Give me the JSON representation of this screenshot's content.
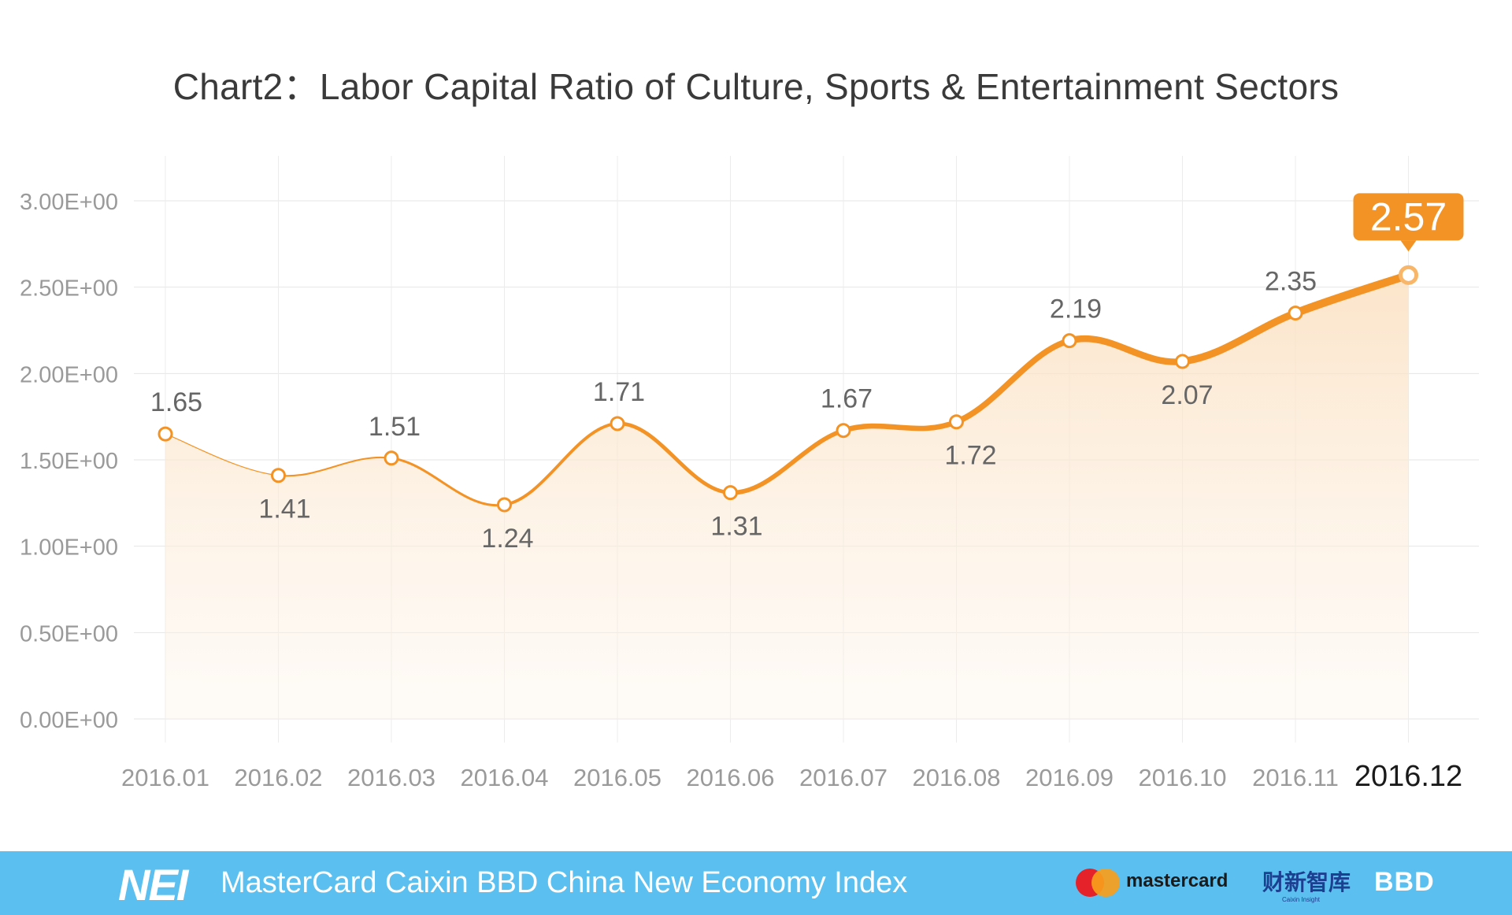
{
  "chart_data": {
    "type": "area",
    "title": "Chart2：Labor Capital Ratio of Culture, Sports & Entertainment Sectors",
    "categories": [
      "2016.01",
      "2016.02",
      "2016.03",
      "2016.04",
      "2016.05",
      "2016.06",
      "2016.07",
      "2016.08",
      "2016.09",
      "2016.10",
      "2016.11",
      "2016.12"
    ],
    "series": [
      {
        "values": [
          1.65,
          1.41,
          1.51,
          1.24,
          1.71,
          1.31,
          1.67,
          1.72,
          2.19,
          2.07,
          2.35,
          2.57
        ]
      }
    ],
    "data_labels": [
      "1.65",
      "1.41",
      "1.51",
      "1.24",
      "1.71",
      "1.31",
      "1.67",
      "1.72",
      "2.19",
      "2.07",
      "2.35",
      "2.57"
    ],
    "ylim": [
      0,
      3.0
    ],
    "yticks": [
      0,
      0.5,
      1.0,
      1.5,
      2.0,
      2.5,
      3.0
    ],
    "ytick_labels": [
      "0.00E+00",
      "0.50E+00",
      "1.00E+00",
      "1.50E+00",
      "2.00E+00",
      "2.50E+00",
      "3.00E+00"
    ],
    "xlabel": "",
    "ylabel": "",
    "grid": true,
    "legend": "none",
    "highlight_last": true,
    "line_color": "#f39325",
    "area_color": "#fbe3c6"
  },
  "footer": {
    "logo": "NEI",
    "index_name": "MasterCard Caixin BBD China New Economy Index",
    "mastercard_label": "mastercard",
    "caixin_label": "财新智库",
    "caixin_sub": "Caixin Insight",
    "bbd_label": "BBD",
    "background_color": "#5bc0f0"
  }
}
